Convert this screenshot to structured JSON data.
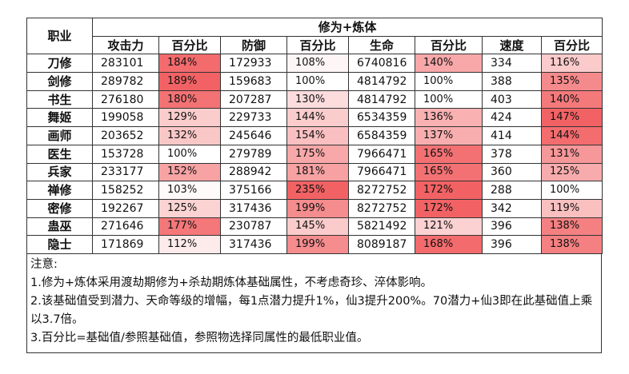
{
  "table": {
    "corner": "职业",
    "group": "修为+炼体",
    "columns": [
      "攻击力",
      "百分比",
      "防御",
      "百分比",
      "生命",
      "百分比",
      "速度",
      "百分比"
    ],
    "rows": [
      [
        "刀修",
        "283101",
        "184%",
        "172933",
        "108%",
        "6740816",
        "140%",
        "334",
        "116%"
      ],
      [
        "剑修",
        "289782",
        "189%",
        "159683",
        "100%",
        "4814792",
        "100%",
        "388",
        "135%"
      ],
      [
        "书生",
        "276180",
        "180%",
        "207287",
        "130%",
        "4814792",
        "100%",
        "403",
        "140%"
      ],
      [
        "舞姬",
        "199058",
        "129%",
        "229733",
        "144%",
        "6534359",
        "136%",
        "424",
        "147%"
      ],
      [
        "画师",
        "203652",
        "132%",
        "245646",
        "154%",
        "6584359",
        "137%",
        "414",
        "144%"
      ],
      [
        "医生",
        "153728",
        "100%",
        "279789",
        "175%",
        "7966471",
        "165%",
        "378",
        "131%"
      ],
      [
        "兵家",
        "233177",
        "152%",
        "288942",
        "181%",
        "7966471",
        "165%",
        "360",
        "125%"
      ],
      [
        "禅修",
        "158252",
        "103%",
        "375166",
        "235%",
        "8272752",
        "172%",
        "288",
        "100%"
      ],
      [
        "密修",
        "192267",
        "125%",
        "317436",
        "199%",
        "8272752",
        "172%",
        "342",
        "119%"
      ],
      [
        "蛊巫",
        "271646",
        "177%",
        "230787",
        "145%",
        "5821492",
        "121%",
        "396",
        "138%"
      ],
      [
        "隐士",
        "171869",
        "112%",
        "317436",
        "199%",
        "8089187",
        "168%",
        "396",
        "138%"
      ]
    ]
  },
  "notes": {
    "title": "注意:",
    "items": [
      "1.修为+炼体采用渡劫期修为+杀劫期炼体基础属性，不考虑奇珍、淬体影响。",
      "2.该基础值受到潜力、天命等级的增幅，每1点潜力提升1%，仙3提升200%。70潜力+仙3即在此基础值上乘以3.7倍。",
      "3.百分比=基础值/参照基础值，参照物选择同属性的最低职业值。"
    ]
  }
}
